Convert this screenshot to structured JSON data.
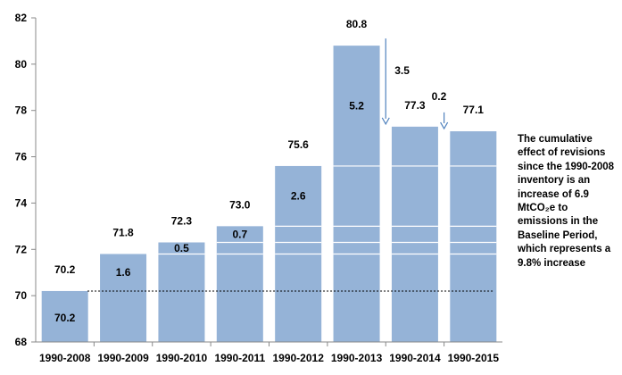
{
  "chart_data": {
    "type": "bar",
    "categories": [
      "1990-2008",
      "1990-2009",
      "1990-2010",
      "1990-2011",
      "1990-2012",
      "1990-2013",
      "1990-2014",
      "1990-2015"
    ],
    "values": [
      70.2,
      71.8,
      72.3,
      73.0,
      75.6,
      80.8,
      77.3,
      77.1
    ],
    "value_labels": [
      "70.2",
      "71.8",
      "72.3",
      "73.0",
      "75.6",
      "80.8",
      "77.3",
      "77.1"
    ],
    "increments": [
      {
        "category": "1990-2008",
        "label": "70.2"
      },
      {
        "category": "1990-2009",
        "label": "1.6"
      },
      {
        "category": "1990-2010",
        "label": "0.5"
      },
      {
        "category": "1990-2011",
        "label": "0.7"
      },
      {
        "category": "1990-2012",
        "label": "2.6"
      },
      {
        "category": "1990-2013",
        "label": "5.2"
      }
    ],
    "segment_boundaries": [
      71.8,
      72.3,
      73.0,
      75.6
    ],
    "decreases": [
      {
        "from": "1990-2013",
        "label": "3.5"
      },
      {
        "from": "1990-2014",
        "label": "0.2"
      }
    ],
    "baseline": 70.2,
    "ylim": [
      68,
      82
    ],
    "yticks": [
      68,
      70,
      72,
      74,
      76,
      78,
      80,
      82
    ],
    "grid": false,
    "bar_color": "#95b3d7",
    "arrow_color": "#4f81bd",
    "annotation_lines": [
      "The cumulative",
      "effect of revisions",
      "since the 1990-2008",
      "inventory is an",
      "increase of 6.9",
      "MtCO₂e to",
      "emissions in the",
      "Baseline Period,",
      "which represents a",
      "9.8% increase"
    ]
  }
}
